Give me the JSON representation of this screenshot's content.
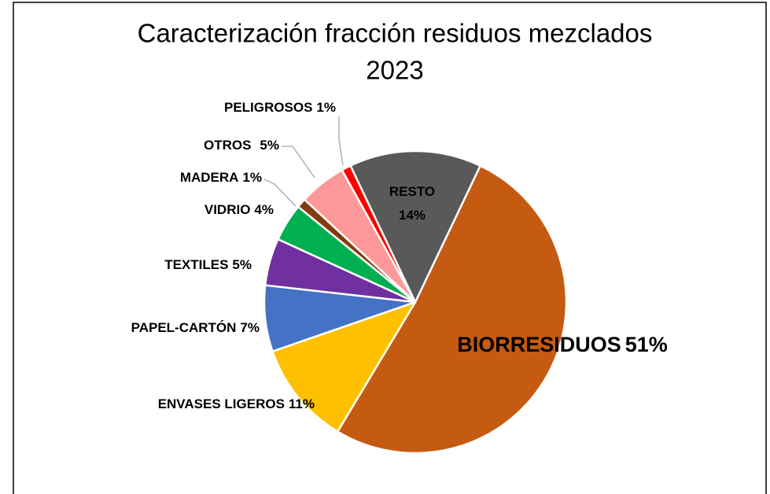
{
  "chart_data": {
    "type": "pie",
    "title": [
      "Caracterización fracción residuos mezclados",
      "2023"
    ],
    "categories": [
      "BIORRESIDUOS",
      "ENVASES LIGEROS",
      "PAPEL-CARTÓN",
      "TEXTILES",
      "VIDRIO",
      "MADERA",
      "OTROS",
      "PELIGROSOS",
      "RESTO"
    ],
    "values": [
      51,
      11,
      7,
      5,
      4,
      1,
      5,
      1,
      14
    ],
    "value_labels": [
      "51%",
      "11%",
      "7%",
      "5%",
      "4%",
      "1%",
      "5%",
      "1%",
      "14%"
    ],
    "colors": [
      "#c55a11",
      "#ffc000",
      "#4472c4",
      "#7030a0",
      "#00b050",
      "#843c0c",
      "#ff9999",
      "#ff0000",
      "#595959"
    ]
  }
}
